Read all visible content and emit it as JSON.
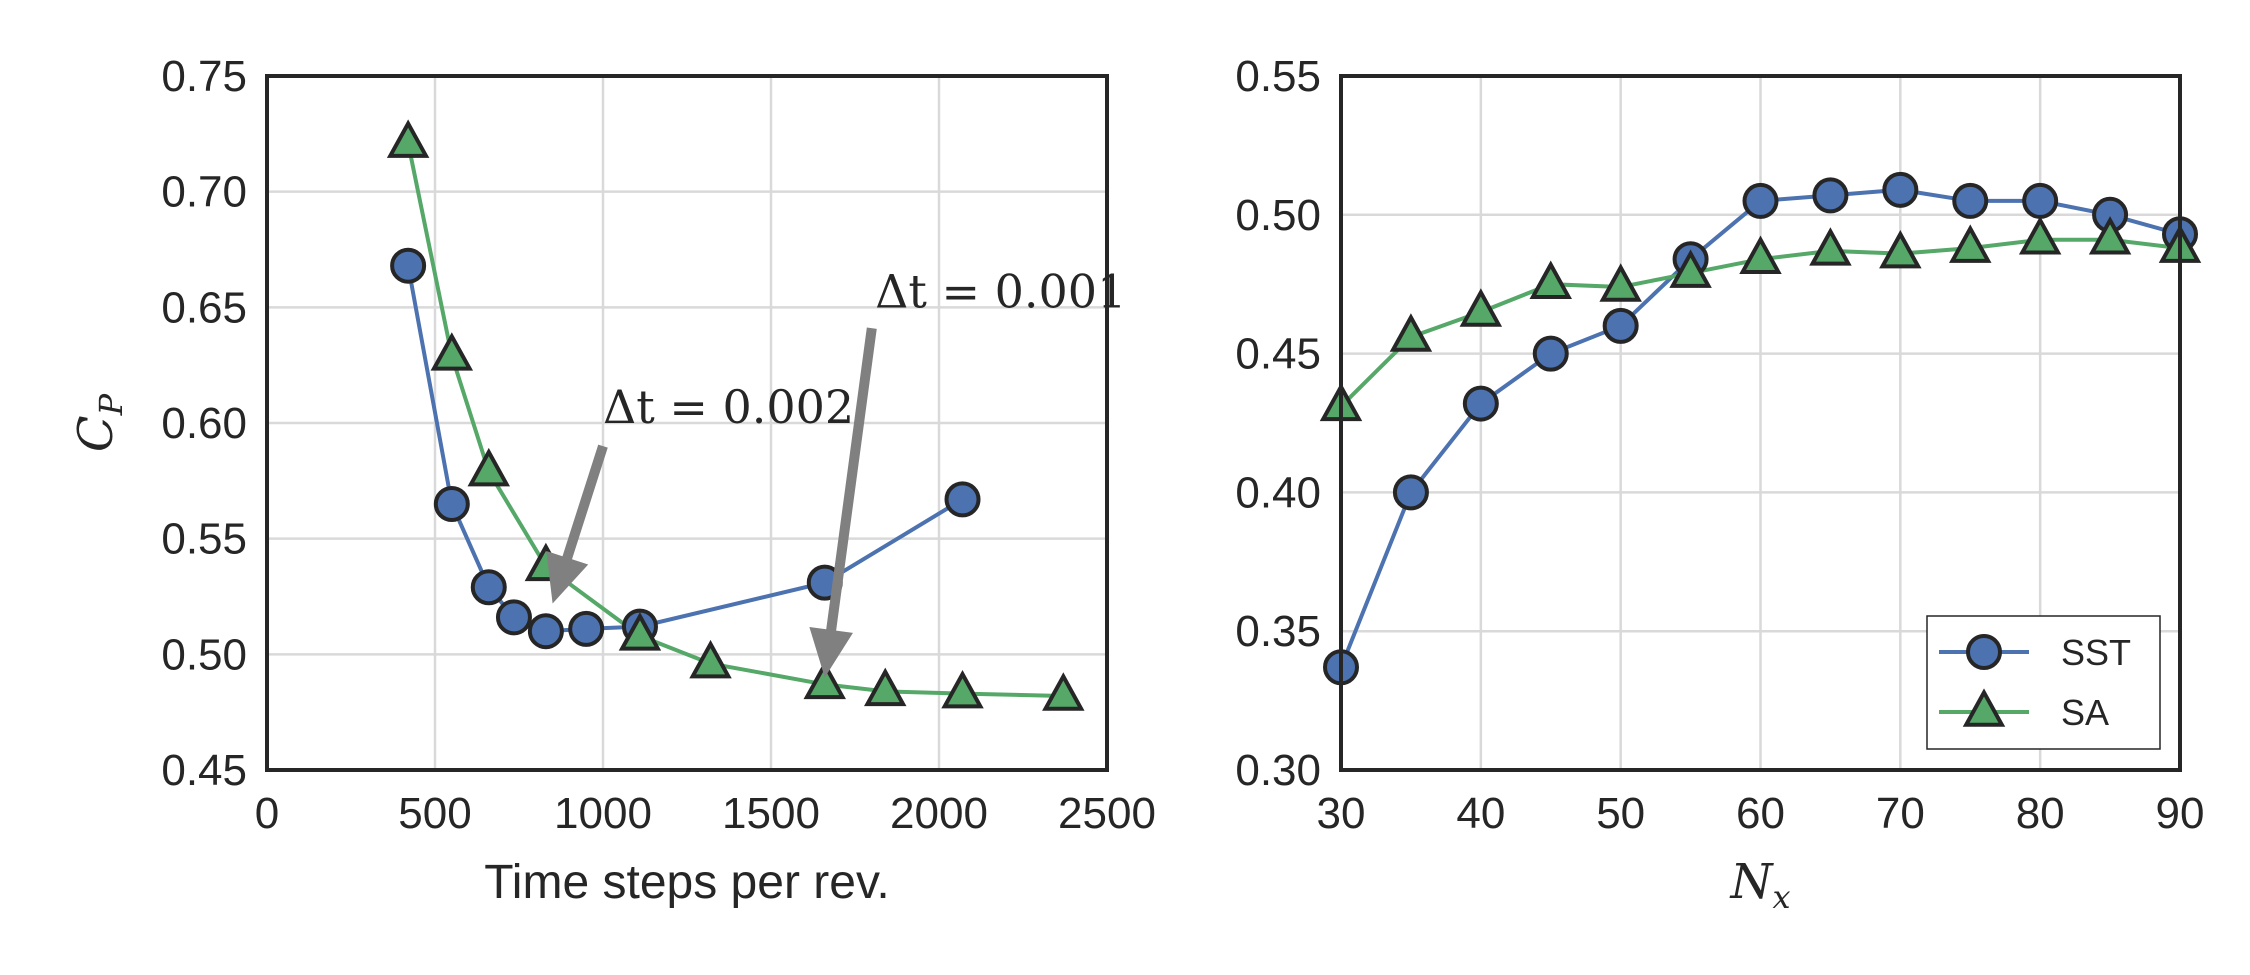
{
  "colors": {
    "SST": "#4c72b0",
    "SA": "#55a868",
    "edge": "#262626",
    "grid": "#d9d9d9",
    "arrow": "#808080"
  },
  "chart_data": [
    {
      "type": "line",
      "xlabel": "Time steps per rev.",
      "ylabel_main": "C",
      "ylabel_sub": "P",
      "xlim": [
        0,
        2500
      ],
      "ylim": [
        0.45,
        0.75
      ],
      "xticks": [
        "0",
        "500",
        "1000",
        "1500",
        "2000",
        "2500"
      ],
      "yticks": [
        "0.45",
        "0.50",
        "0.55",
        "0.60",
        "0.65",
        "0.70",
        "0.75"
      ],
      "grid": true,
      "series": [
        {
          "name": "SST",
          "marker": "circle",
          "x": [
            420,
            550,
            660,
            735,
            830,
            950,
            1110,
            1660,
            2070
          ],
          "y": [
            0.668,
            0.565,
            0.529,
            0.516,
            0.51,
            0.511,
            0.512,
            0.531,
            0.567
          ]
        },
        {
          "name": "SA",
          "marker": "triangle",
          "x": [
            420,
            550,
            660,
            830,
            1110,
            1320,
            1660,
            1840,
            2070,
            2370
          ],
          "y": [
            0.721,
            0.629,
            0.579,
            0.538,
            0.508,
            0.496,
            0.487,
            0.484,
            0.483,
            0.482
          ]
        }
      ],
      "annotations": [
        {
          "text": "Δt = 0.002",
          "text_at": [
            1000,
            0.6
          ],
          "arrow_from": [
            1000,
            0.59
          ],
          "arrow_to": [
            850,
            0.522
          ]
        },
        {
          "text": "Δt = 0.001",
          "text_at": [
            1810,
            0.65
          ],
          "arrow_from": [
            1800,
            0.641
          ],
          "arrow_to": [
            1660,
            0.49
          ]
        }
      ]
    },
    {
      "type": "line",
      "xlabel_main": "N",
      "xlabel_sub": "x",
      "xlim": [
        30,
        90
      ],
      "ylim": [
        0.3,
        0.55
      ],
      "xticks": [
        "30",
        "40",
        "50",
        "60",
        "70",
        "80",
        "90"
      ],
      "yticks": [
        "0.30",
        "0.35",
        "0.40",
        "0.45",
        "0.50",
        "0.55"
      ],
      "grid": true,
      "legend": {
        "position": "lower-right",
        "entries": [
          "SST",
          "SA"
        ]
      },
      "series": [
        {
          "name": "SST",
          "marker": "circle",
          "x": [
            30,
            35,
            40,
            45,
            50,
            55,
            60,
            65,
            70,
            75,
            80,
            85,
            90
          ],
          "y": [
            0.337,
            0.4,
            0.432,
            0.45,
            0.46,
            0.484,
            0.505,
            0.507,
            0.509,
            0.505,
            0.505,
            0.5,
            0.493
          ]
        },
        {
          "name": "SA",
          "marker": "triangle",
          "x": [
            30,
            35,
            40,
            45,
            50,
            55,
            60,
            65,
            70,
            75,
            80,
            85,
            90
          ],
          "y": [
            0.431,
            0.456,
            0.465,
            0.475,
            0.474,
            0.479,
            0.484,
            0.487,
            0.486,
            0.488,
            0.491,
            0.491,
            0.488
          ]
        }
      ]
    }
  ]
}
